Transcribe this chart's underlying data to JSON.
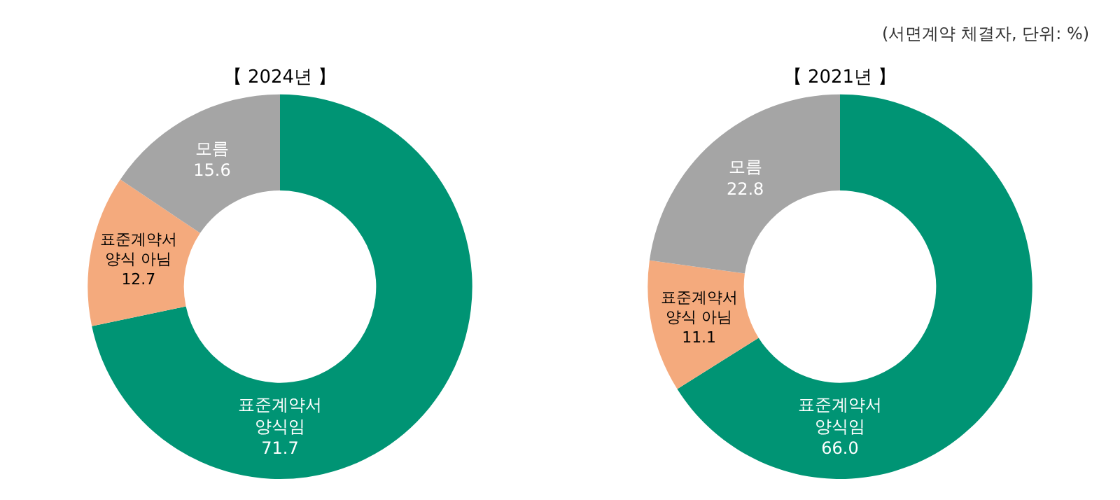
{
  "chart_data": [
    {
      "type": "donut",
      "title": "【 2024년 】",
      "categories": [
        "표준계약서 양식임",
        "표준계약서 양식 아님",
        "모름"
      ],
      "values": [
        71.7,
        12.7,
        15.6
      ],
      "value_labels": [
        "71.7",
        "12.7",
        "15.6"
      ],
      "colors": [
        "#009474",
        "#f4aa7d",
        "#a5a5a5"
      ],
      "legend": false
    },
    {
      "type": "donut",
      "title": "【 2021년 】",
      "categories": [
        "표준계약서 양식임",
        "표준계약서 양식 아님",
        "모름"
      ],
      "values": [
        66.0,
        11.1,
        22.8
      ],
      "value_labels": [
        "66.0",
        "11.1",
        "22.8"
      ],
      "colors": [
        "#009474",
        "#f4aa7d",
        "#a5a5a5"
      ],
      "legend": false,
      "annotations": [
        "(서면계약 체결자, 단위: %)"
      ]
    }
  ]
}
